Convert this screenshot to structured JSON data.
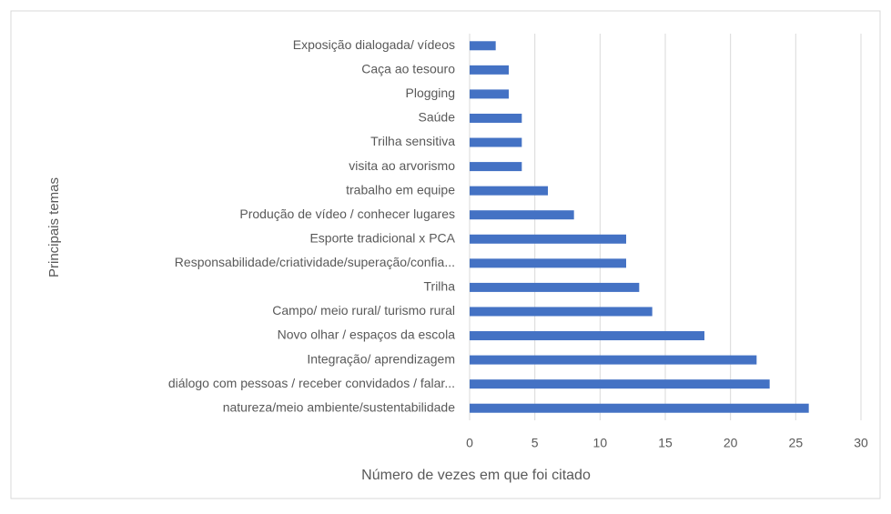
{
  "chart_data": {
    "type": "barh",
    "categories": [
      "Exposição dialogada/ vídeos",
      "Caça ao tesouro",
      "Plogging",
      "Saúde",
      "Trilha sensitiva",
      "visita ao arvorismo",
      "trabalho em equipe",
      "Produção de vídeo / conhecer lugares",
      "Esporte tradicional x PCA",
      "Responsabilidade/criatividade/superação/confia...",
      "Trilha",
      "Campo/ meio rural/ turismo rural",
      "Novo olhar / espaços da escola",
      "Integração/ aprendizagem",
      "diálogo com pessoas / receber convidados / falar...",
      "natureza/meio ambiente/sustentabilidade"
    ],
    "values": [
      2,
      3,
      3,
      4,
      4,
      4,
      6,
      8,
      12,
      12,
      13,
      14,
      18,
      22,
      23,
      26
    ],
    "color": "#4472c4",
    "xlim": [
      0,
      30
    ],
    "xticks": [
      0,
      5,
      10,
      15,
      20,
      25,
      30
    ],
    "grid": true,
    "xlabel": "Número de vezes em que foi citado",
    "ylabel": "Principais temas"
  }
}
